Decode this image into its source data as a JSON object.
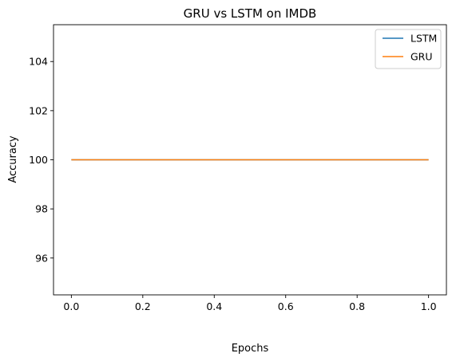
{
  "chart_data": {
    "type": "line",
    "title": "GRU vs LSTM on IMDB",
    "xlabel": "Epochs",
    "ylabel": "Accuracy",
    "xlim": [
      -0.05,
      1.05
    ],
    "ylim": [
      94.5,
      105.5
    ],
    "xticks": [
      0.0,
      0.2,
      0.4,
      0.6,
      0.8,
      1.0
    ],
    "xtick_labels": [
      "0.0",
      "0.2",
      "0.4",
      "0.6",
      "0.8",
      "1.0"
    ],
    "yticks": [
      96,
      98,
      100,
      102,
      104
    ],
    "ytick_labels": [
      "96",
      "98",
      "100",
      "102",
      "104"
    ],
    "grid": false,
    "legend_position": "top-right",
    "series": [
      {
        "name": "LSTM",
        "color": "#1f77b4",
        "x": [
          0,
          1
        ],
        "y": [
          100,
          100
        ]
      },
      {
        "name": "GRU",
        "color": "#ff7f0e",
        "x": [
          0,
          1
        ],
        "y": [
          100,
          100
        ]
      }
    ]
  }
}
